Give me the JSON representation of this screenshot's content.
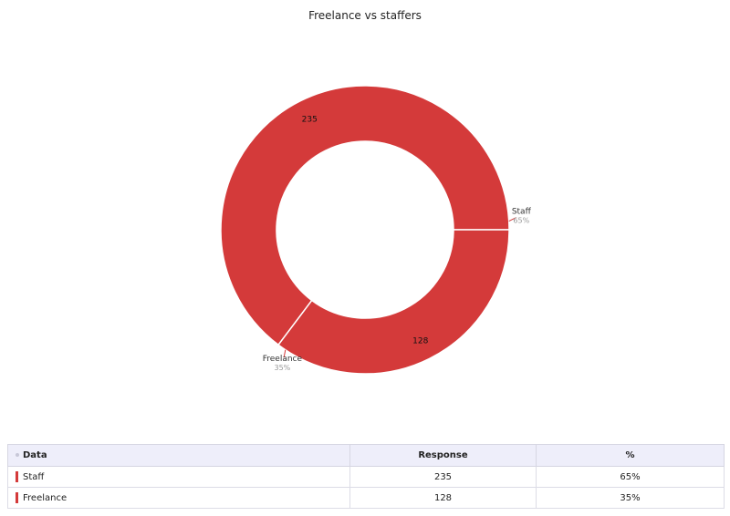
{
  "chart_data": {
    "type": "pie",
    "variant": "donut",
    "title": "Freelance vs staffers",
    "slices": [
      {
        "label": "Staff",
        "value": 235,
        "percent": "65%",
        "color": "#d43a3a"
      },
      {
        "label": "Freelance",
        "value": 128,
        "percent": "35%",
        "color": "#d43a3a"
      }
    ]
  },
  "table": {
    "headers": [
      "Data",
      "Response",
      "%"
    ],
    "rows": [
      {
        "label": "Staff",
        "response": "235",
        "percent": "65%"
      },
      {
        "label": "Freelance",
        "response": "128",
        "percent": "35%"
      }
    ]
  }
}
